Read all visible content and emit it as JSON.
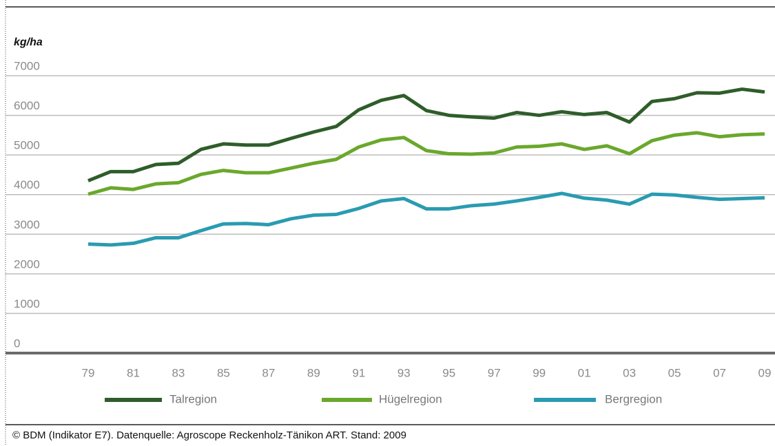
{
  "chart_data": {
    "type": "line",
    "y_label": "kg/ha",
    "footer": "© BDM (Indikator E7). Datenquelle: Agroscope Reckenholz-Tänikon ART. Stand: 2009",
    "categories": [
      "79",
      null,
      "81",
      null,
      "83",
      null,
      "85",
      null,
      "87",
      null,
      "89",
      null,
      "91",
      null,
      "93",
      null,
      "95",
      null,
      "97",
      null,
      "99",
      null,
      "01",
      null,
      "03",
      null,
      "05",
      null,
      "07",
      null,
      "09"
    ],
    "ylim": [
      0,
      7000
    ],
    "yticks": [
      0,
      1000,
      2000,
      3000,
      4000,
      5000,
      6000,
      7000
    ],
    "grid": true,
    "legend": "bottom",
    "series": [
      {
        "name": "Talregion",
        "color": "#2f5d2a",
        "values": [
          4350,
          4580,
          4580,
          4760,
          4790,
          5140,
          5280,
          5250,
          5250,
          5420,
          5580,
          5720,
          6140,
          6380,
          6500,
          6120,
          6000,
          5960,
          5930,
          6070,
          6000,
          6090,
          6020,
          6070,
          5830,
          6350,
          6420,
          6570,
          6560,
          6660,
          6590
        ]
      },
      {
        "name": "Hügelregion",
        "color": "#6aa82c",
        "values": [
          4010,
          4170,
          4130,
          4270,
          4300,
          4510,
          4610,
          4550,
          4550,
          4670,
          4790,
          4890,
          5200,
          5380,
          5440,
          5110,
          5030,
          5020,
          5050,
          5200,
          5220,
          5280,
          5140,
          5230,
          5030,
          5360,
          5500,
          5560,
          5460,
          5510,
          5530
        ]
      },
      {
        "name": "Bergregion",
        "color": "#2a9bb1",
        "values": [
          2750,
          2730,
          2770,
          2910,
          2910,
          3090,
          3260,
          3270,
          3240,
          3390,
          3480,
          3500,
          3650,
          3840,
          3900,
          3640,
          3640,
          3720,
          3760,
          3840,
          3930,
          4030,
          3910,
          3860,
          3760,
          4010,
          3990,
          3930,
          3880,
          3900,
          3920
        ]
      }
    ]
  }
}
